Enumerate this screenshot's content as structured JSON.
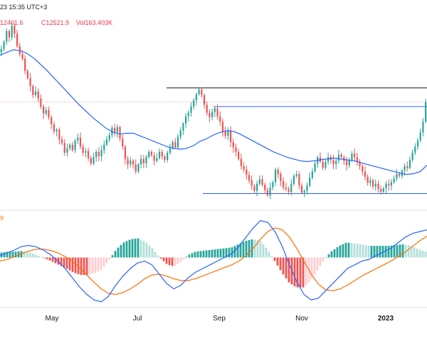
{
  "header": {
    "timestamp": "23 15:35 UTC+3",
    "ohlc_tail": "12401.6",
    "close_label": "C12521.9",
    "volume_label": "Vol163.403K",
    "macd_label": "9"
  },
  "colors": {
    "up": "#26a69a",
    "down": "#ef5350",
    "ma_line": "#2962ff",
    "macd_line": "#2962ff",
    "signal_line": "#ff6d00",
    "hist_up_strong": "#26a69a",
    "hist_up_weak": "#b2dfdb",
    "hist_down_strong": "#ef5350",
    "hist_down_weak": "#ffcdd2",
    "resistance_line": "#131722",
    "range_line": "#2962ff",
    "price_line": "#f23645"
  },
  "chart_data": [
    {
      "type": "candlestick",
      "x_labels": [
        "May",
        "Jul",
        "Sep",
        "Nov",
        "2023"
      ],
      "x_label_months": [
        "2022-05",
        "2022-07",
        "2022-09",
        "2022-11",
        "2023-01"
      ],
      "close_series": [
        13120,
        13200,
        13320,
        13250,
        13380,
        13290,
        13150,
        13060,
        13010,
        12870,
        12790,
        12700,
        12600,
        12640,
        12560,
        12470,
        12390,
        12430,
        12350,
        12270,
        12190,
        12210,
        12100,
        12060,
        11950,
        12000,
        12040,
        11980,
        12090,
        12120,
        12020,
        11950,
        11970,
        11890,
        11830,
        11900,
        11960,
        11910,
        11980,
        12040,
        12100,
        12150,
        12230,
        12180,
        12240,
        12110,
        12020,
        11880,
        11820,
        11860,
        11820,
        11740,
        11820,
        11880,
        11830,
        11900,
        11960,
        11920,
        11860,
        11890,
        11960,
        11910,
        11870,
        11950,
        12000,
        12070,
        12010,
        12130,
        12200,
        12280,
        12360,
        12400,
        12470,
        12540,
        12610,
        12660,
        12600,
        12490,
        12400,
        12350,
        12410,
        12450,
        12360,
        12300,
        12190,
        12140,
        12200,
        12070,
        12010,
        11960,
        11880,
        11800,
        11760,
        11700,
        11640,
        11580,
        11520,
        11600,
        11650,
        11590,
        11530,
        11470,
        11560,
        11620,
        11760,
        11710,
        11630,
        11560,
        11540,
        11510,
        11600,
        11690,
        11710,
        11580,
        11500,
        11520,
        11580,
        11670,
        11740,
        11830,
        11900,
        11850,
        11780,
        11850,
        11900,
        11870,
        11820,
        11860,
        11930,
        11900,
        11860,
        11810,
        11870,
        11940,
        11900,
        11850,
        11800,
        11740,
        11680,
        11610,
        11640,
        11570,
        11600,
        11540,
        11510,
        11550,
        11600,
        11580,
        11620,
        11660,
        11710,
        11690,
        11750,
        11800,
        11780,
        11870,
        11950,
        12020,
        12090,
        12180,
        12300,
        12521.9
      ],
      "ma_series": [
        13050,
        13080,
        13110,
        13100,
        13070,
        13020,
        12950,
        12880,
        12800,
        12720,
        12640,
        12560,
        12480,
        12410,
        12340,
        12280,
        12220,
        12180,
        12160,
        12170,
        12170,
        12140,
        12110,
        12080,
        12050,
        12020,
        12000,
        11990,
        12000,
        12030,
        12080,
        12110,
        12150,
        12180,
        12200,
        12190,
        12160,
        12120,
        12080,
        12040,
        12000,
        11960,
        11930,
        11900,
        11880,
        11860,
        11850,
        11860,
        11870,
        11880,
        11890,
        11880,
        11870,
        11860,
        11840,
        11820,
        11800,
        11780,
        11760,
        11740,
        11720,
        11705,
        11715,
        11740,
        11810
      ],
      "range_levels": {
        "resistance": 12680,
        "upper": 12470,
        "lower": 11490
      },
      "last_price": 12521.9,
      "ylim": [
        11350,
        13350
      ]
    },
    {
      "type": "macd",
      "macd_series": [
        10,
        25,
        40,
        60,
        65,
        58,
        40,
        15,
        -20,
        -60,
        -110,
        -160,
        -200,
        -230,
        -240,
        -210,
        -150,
        -100,
        -60,
        -30,
        -20,
        -40,
        -90,
        -140,
        -170,
        -150,
        -110,
        -80,
        -60,
        -40,
        -20,
        0,
        20,
        60,
        110,
        160,
        200,
        190,
        140,
        60,
        -40,
        -130,
        -200,
        -230,
        -220,
        -180,
        -140,
        -100,
        -60,
        -40,
        -20,
        -10,
        10,
        30,
        50,
        80,
        110,
        130,
        140,
        150
      ],
      "signal_series": [
        -20,
        -10,
        5,
        20,
        35,
        45,
        45,
        38,
        25,
        5,
        -20,
        -55,
        -95,
        -135,
        -170,
        -195,
        -200,
        -190,
        -170,
        -145,
        -115,
        -95,
        -90,
        -100,
        -115,
        -125,
        -125,
        -115,
        -100,
        -85,
        -70,
        -55,
        -40,
        -20,
        10,
        50,
        100,
        140,
        160,
        150,
        110,
        50,
        -20,
        -90,
        -145,
        -175,
        -180,
        -170,
        -150,
        -125,
        -100,
        -80,
        -60,
        -40,
        -20,
        5,
        30,
        60,
        90,
        115
      ],
      "ylim": [
        -260,
        240
      ]
    }
  ]
}
